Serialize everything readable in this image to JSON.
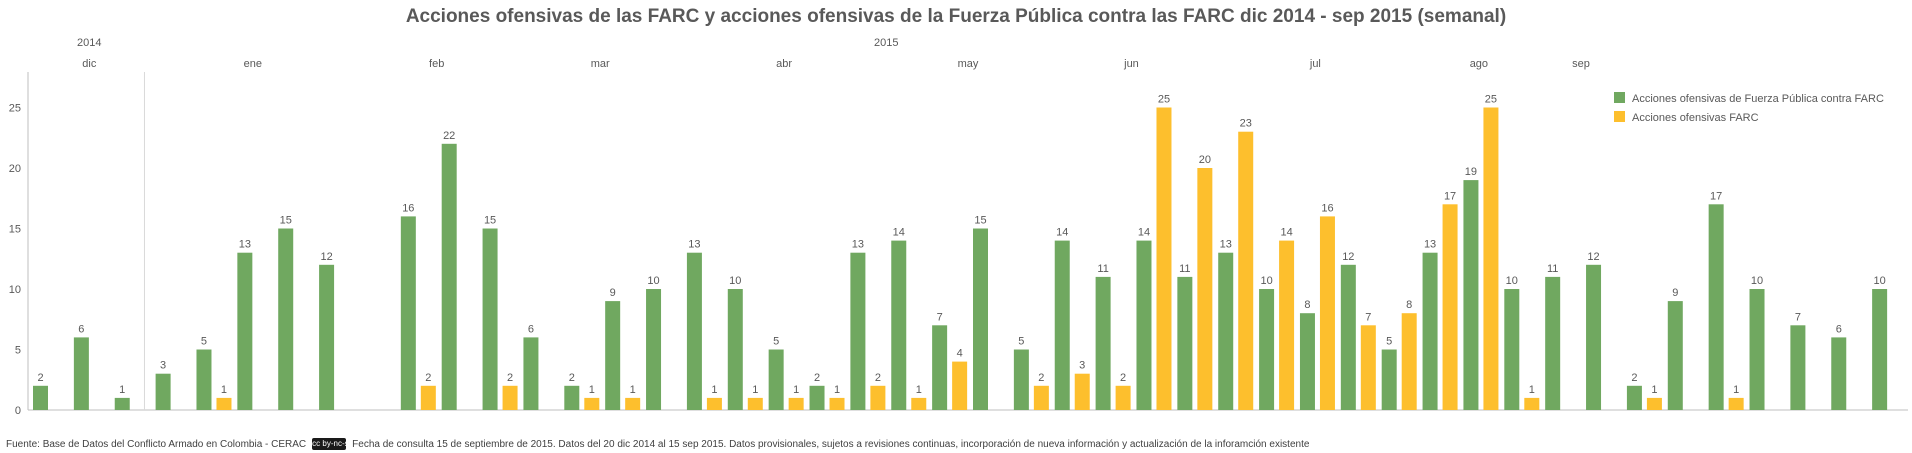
{
  "colors": {
    "green": "#70a860",
    "yellow": "#fdbf2d",
    "text": "#595959",
    "axis": "#bfbfbf"
  },
  "chart_data": {
    "type": "bar",
    "title": "Acciones ofensivas de las FARC y acciones ofensivas de la Fuerza Pública contra las FARC dic 2014 - sep 2015 (semanal)",
    "years": [
      {
        "label": "2014",
        "start_week": 0,
        "end_week": 2
      },
      {
        "label": "2015",
        "start_week": 3,
        "end_week": 38
      }
    ],
    "months": [
      {
        "label": "dic",
        "start_week": 0,
        "end_week": 2
      },
      {
        "label": "ene",
        "start_week": 3,
        "end_week": 7
      },
      {
        "label": "feb",
        "start_week": 8,
        "end_week": 11
      },
      {
        "label": "mar",
        "start_week": 12,
        "end_week": 15
      },
      {
        "label": "abr",
        "start_week": 16,
        "end_week": 20
      },
      {
        "label": "may",
        "start_week": 21,
        "end_week": 24
      },
      {
        "label": "jun",
        "start_week": 25,
        "end_week": 28
      },
      {
        "label": "jul",
        "start_week": 29,
        "end_week": 33
      },
      {
        "label": "ago",
        "start_week": 34,
        "end_week": 36
      },
      {
        "label": "sep",
        "start_week": 37,
        "end_week": 38
      }
    ],
    "ylim": [
      0,
      28
    ],
    "yticks": [
      0,
      5,
      10,
      15,
      20,
      25
    ],
    "grid": false,
    "legend_position": "top-right",
    "series": [
      {
        "name": "Acciones ofensivas de Fuerza Pública contra FARC",
        "color": "#70a860",
        "values": [
          2,
          6,
          1,
          3,
          5,
          13,
          15,
          12,
          0,
          16,
          22,
          15,
          6,
          2,
          9,
          10,
          13,
          10,
          5,
          2,
          13,
          14,
          7,
          15,
          5,
          14,
          11,
          14,
          11,
          13,
          10,
          8,
          12,
          5,
          13,
          19,
          10,
          11,
          12,
          2,
          9,
          17,
          10,
          7,
          6,
          10
        ]
      },
      {
        "name": "Acciones ofensivas FARC",
        "color": "#fdbf2d",
        "values": [
          0,
          0,
          0,
          0,
          1,
          0,
          0,
          0,
          0,
          2,
          0,
          2,
          0,
          1,
          1,
          0,
          1,
          1,
          1,
          1,
          2,
          1,
          4,
          0,
          2,
          3,
          2,
          25,
          20,
          23,
          14,
          16,
          7,
          8,
          17,
          25,
          1,
          0,
          0,
          1,
          0,
          1,
          0,
          0,
          0,
          0
        ]
      }
    ]
  },
  "footer": {
    "source": "Fuente: Base de Datos del Conflicto Armado en Colombia - CERAC",
    "license_badge": "cc by-nc-sa",
    "note": "Fecha de consulta 15 de septiembre de 2015. Datos del 20 dic 2014 al 15 sep 2015. Datos provisionales, sujetos a revisiones continuas, incorporación de nueva información y actualización de la inforamción existente"
  }
}
